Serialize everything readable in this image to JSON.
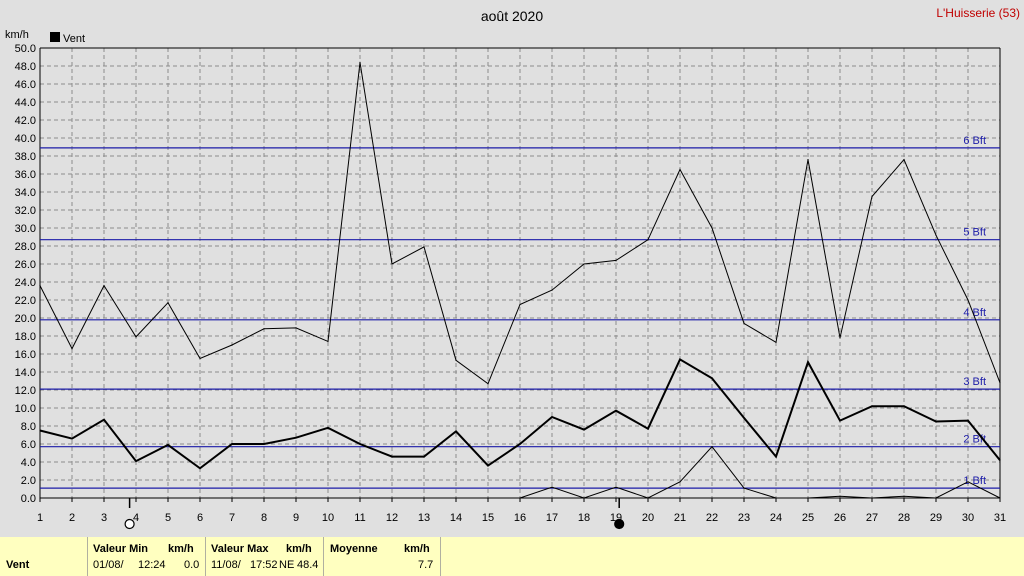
{
  "location": "L'Huisserie (53)",
  "chart_data": {
    "type": "line",
    "title": "août 2020",
    "ylabel": "km/h",
    "legend": [
      {
        "label": "Vent",
        "color": "#000000"
      }
    ],
    "legend_position": "top-left",
    "grid": true,
    "ylim": [
      0,
      50
    ],
    "y_ticks": [
      "0.0",
      "2.0",
      "4.0",
      "6.0",
      "8.0",
      "10.0",
      "12.0",
      "14.0",
      "16.0",
      "18.0",
      "20.0",
      "22.0",
      "24.0",
      "26.0",
      "28.0",
      "30.0",
      "32.0",
      "34.0",
      "36.0",
      "38.0",
      "40.0",
      "42.0",
      "44.0",
      "46.0",
      "48.0",
      "50.0"
    ],
    "x": [
      1,
      2,
      3,
      4,
      5,
      6,
      7,
      8,
      9,
      10,
      11,
      12,
      13,
      14,
      15,
      16,
      17,
      18,
      19,
      20,
      21,
      22,
      23,
      24,
      25,
      26,
      27,
      28,
      29,
      30,
      31
    ],
    "series": [
      {
        "name": "max",
        "width": 1,
        "values": [
          23.6,
          16.6,
          23.6,
          17.9,
          21.7,
          15.5,
          17.0,
          18.8,
          18.9,
          17.4,
          48.4,
          26.0,
          27.9,
          15.3,
          12.7,
          21.5,
          23.1,
          26.0,
          26.4,
          28.7,
          36.5,
          30.0,
          19.4,
          17.3,
          37.6,
          17.8,
          33.5,
          37.6,
          29.2,
          22.0,
          12.8
        ]
      },
      {
        "name": "moyenne",
        "width": 2,
        "values": [
          7.5,
          6.6,
          8.7,
          4.1,
          5.9,
          3.3,
          6.0,
          6.0,
          6.7,
          7.8,
          6.0,
          4.6,
          4.6,
          7.4,
          3.6,
          6.0,
          9.0,
          7.6,
          9.7,
          7.7,
          15.4,
          13.3,
          8.9,
          4.6,
          15.1,
          8.6,
          10.2,
          10.2,
          8.5,
          8.6,
          4.2
        ]
      },
      {
        "name": "min",
        "width": 1,
        "values": [
          0,
          0,
          0,
          0,
          0,
          0,
          0,
          0,
          0,
          0,
          0,
          0,
          0,
          0,
          0,
          0,
          1.2,
          0,
          1.2,
          0,
          1.8,
          5.7,
          1.1,
          0,
          0,
          0.2,
          0,
          0.2,
          0,
          1.8,
          0
        ]
      }
    ],
    "beaufort_lines": [
      {
        "label": "1 Bft",
        "value": 1.1
      },
      {
        "label": "2 Bft",
        "value": 5.7
      },
      {
        "label": "3 Bft",
        "value": 12.1
      },
      {
        "label": "4 Bft",
        "value": 19.8
      },
      {
        "label": "5 Bft",
        "value": 28.7
      },
      {
        "label": "6 Bft",
        "value": 38.9
      }
    ],
    "moon_phases": [
      {
        "x": 3.8,
        "phase": "full"
      },
      {
        "x": 19.1,
        "phase": "new"
      }
    ]
  },
  "footer": {
    "label": "Vent",
    "min_title": "Valeur Min",
    "min_unit": "km/h",
    "min_date": "01/08/",
    "min_time": "12:24",
    "min_value": "0.0",
    "max_title": "Valeur Max",
    "max_unit": "km/h",
    "max_date": "11/08/",
    "max_time": "17:52",
    "max_dir": "NE",
    "max_value": "48.4",
    "avg_title": "Moyenne",
    "avg_unit": "km/h",
    "avg_value": "7.7"
  }
}
